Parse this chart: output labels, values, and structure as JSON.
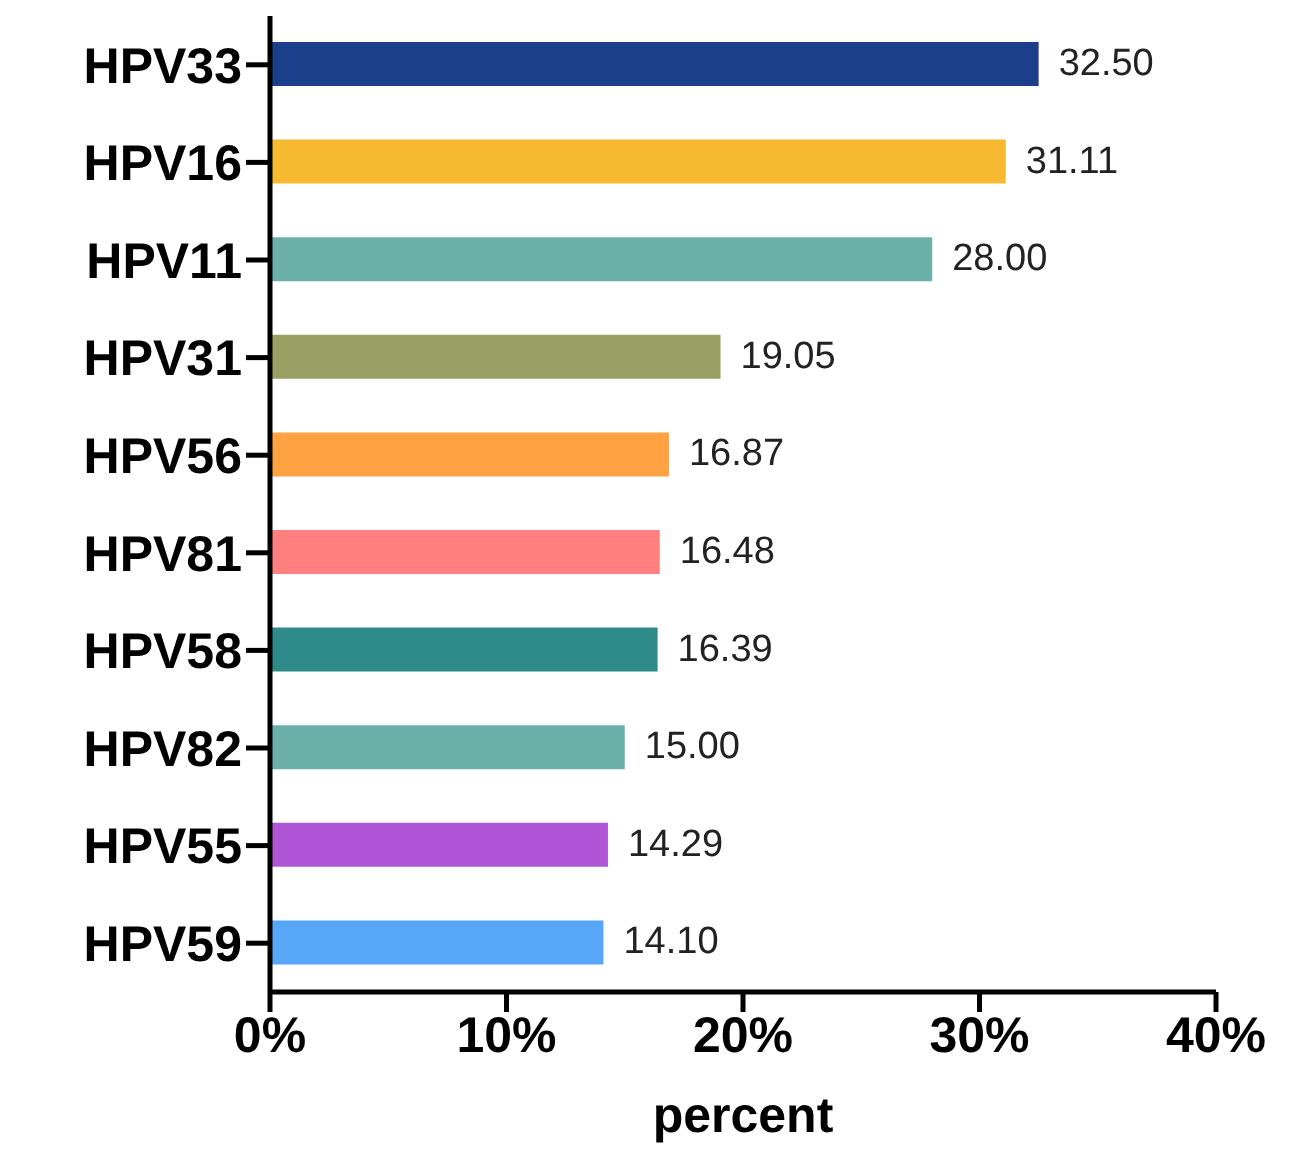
{
  "chart_data": {
    "type": "bar",
    "orientation": "horizontal",
    "xlabel": "percent",
    "categories": [
      "HPV33",
      "HPV16",
      "HPV11",
      "HPV31",
      "HPV56",
      "HPV81",
      "HPV58",
      "HPV82",
      "HPV55",
      "HPV59"
    ],
    "values": [
      32.5,
      31.11,
      28.0,
      19.05,
      16.87,
      16.48,
      16.39,
      15.0,
      14.29,
      14.1
    ],
    "value_labels": [
      "32.50",
      "31.11",
      "28.00",
      "19.05",
      "16.87",
      "16.48",
      "16.39",
      "15.00",
      "14.29",
      "14.10"
    ],
    "colors": [
      "#1b3f8b",
      "#f6b930",
      "#6cb0aa",
      "#9aa064",
      "#ffa342",
      "#ff7f7f",
      "#2f8b89",
      "#6cb0aa",
      "#b055d6",
      "#57a6f7"
    ],
    "xlim": [
      0,
      40
    ],
    "xticks": [
      {
        "value": 0,
        "label": "0%"
      },
      {
        "value": 10,
        "label": "10%"
      },
      {
        "value": 20,
        "label": "20%"
      },
      {
        "value": 30,
        "label": "30%"
      },
      {
        "value": 40,
        "label": "40%"
      }
    ]
  }
}
